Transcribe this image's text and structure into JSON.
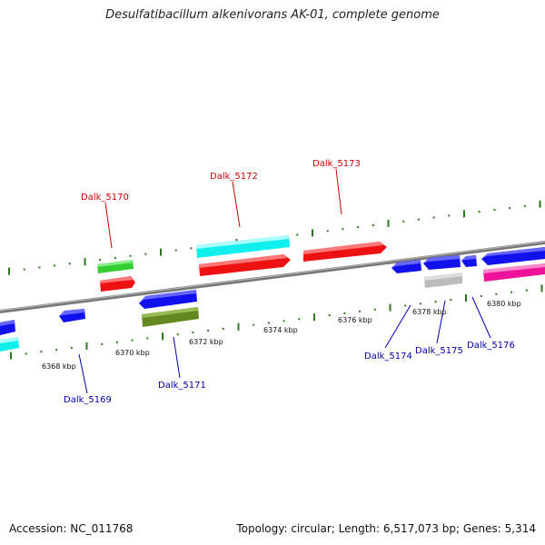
{
  "title": "Desulfatibacillum alkenivorans AK-01, complete genome",
  "footer": {
    "accession": "Accession: NC_011768",
    "summary": "Topology: circular; Length: 6,517,073 bp; Genes: 5,314"
  },
  "colors": {
    "backbone": "#888888",
    "tick": "#2a7a1a",
    "forward_label": "#cc0000",
    "reverse_label": "#0000aa"
  },
  "scale_labels": [
    "6368 kbp",
    "6370 kbp",
    "6372 kbp",
    "6374 kbp",
    "6376 kbp",
    "6378 kbp",
    "6380 kbp"
  ],
  "gene_labels": {
    "dalk_5169": "Dalk_5169",
    "dalk_5170": "Dalk_5170",
    "dalk_5171": "Dalk_5171",
    "dalk_5172": "Dalk_5172",
    "dalk_5173": "Dalk_5173",
    "dalk_5174": "Dalk_5174",
    "dalk_5175": "Dalk_5175",
    "dalk_5176": "Dalk_5176"
  },
  "feature_colors": {
    "red": "#ee1111",
    "cyan": "#11eeee",
    "green": "#33cc33",
    "blue": "#1111ee",
    "olive": "#668822",
    "gray": "#bbbbbb",
    "pink": "#ee1199"
  }
}
